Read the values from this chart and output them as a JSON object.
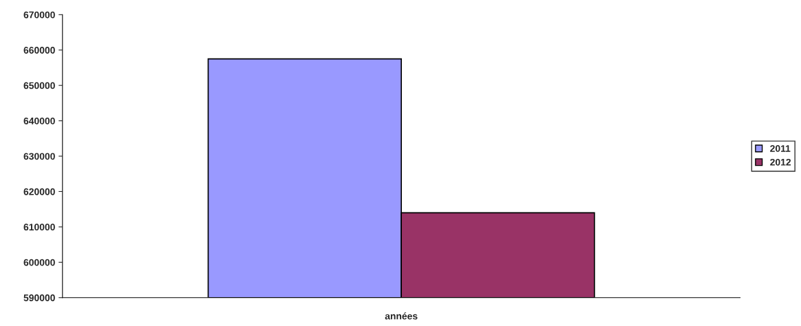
{
  "chart_data": {
    "type": "bar",
    "xlabel": "années",
    "categories": [
      null
    ],
    "series": [
      {
        "name": "2011",
        "color": "#9999ff",
        "values": [
          657500
        ]
      },
      {
        "name": "2012",
        "color": "#993366",
        "values": [
          614000
        ]
      }
    ],
    "ylim": [
      590000,
      670000
    ],
    "yticks": [
      590000,
      600000,
      610000,
      620000,
      630000,
      640000,
      650000,
      660000,
      670000
    ],
    "grid": false,
    "legend": "right"
  }
}
